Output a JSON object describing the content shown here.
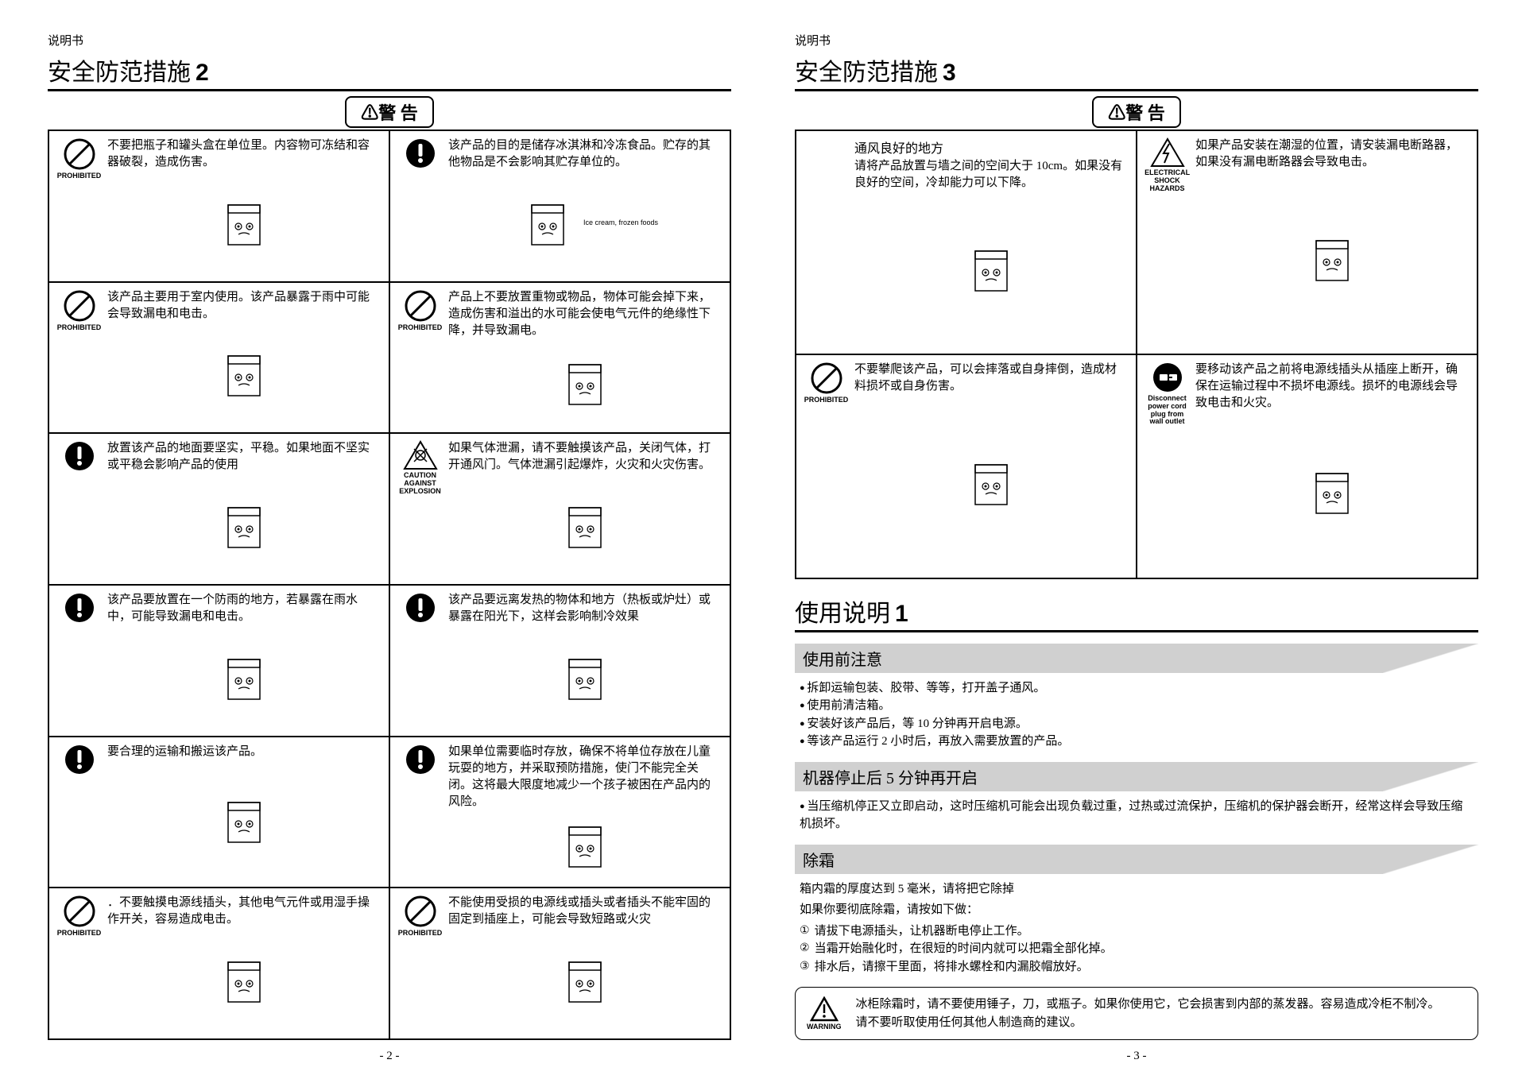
{
  "doc_label": "说明书",
  "left": {
    "title": "安全防范措施",
    "title_num": "2",
    "banner": "⚠警 告",
    "cells": [
      {
        "icon": "prohibited",
        "icon_label": "PROHIBITED",
        "text": "不要把瓶子和罐头盒在单位里。内容物可冻结和容器破裂，造成伤害。"
      },
      {
        "icon": "excl",
        "text": "该产品的目的是储存冰淇淋和冷冻食品。贮存的其他物品是不会影响其贮存单位的。",
        "caption": "Ice cream, frozen foods"
      },
      {
        "icon": "prohibited",
        "icon_label": "PROHIBITED",
        "text": "该产品主要用于室内使用。该产品暴露于雨中可能会导致漏电和电击。"
      },
      {
        "icon": "prohibited",
        "icon_label": "PROHIBITED",
        "text": "产品上不要放置重物或物品，物体可能会掉下来，造成伤害和溢出的水可能会使电气元件的绝缘性下降，并导致漏电。"
      },
      {
        "icon": "excl",
        "text": "放置该产品的地面要坚实，平稳。如果地面不坚实或平稳会影响产品的使用"
      },
      {
        "icon": "caution",
        "icon_label": "CAUTION AGAINST EXPLOSION",
        "text": "如果气体泄漏，请不要触摸该产品，关闭气体，打开通风门。气体泄漏引起爆炸，火灾和火灾伤害。"
      },
      {
        "icon": "excl",
        "text": "该产品要放置在一个防雨的地方，若暴露在雨水中，可能导致漏电和电击。"
      },
      {
        "icon": "excl",
        "text": "该产品要远离发热的物体和地方（热板或炉灶）或暴露在阳光下，这样会影响制冷效果"
      },
      {
        "icon": "excl",
        "text": "要合理的运输和搬运该产品。"
      },
      {
        "icon": "excl",
        "text": "如果单位需要临时存放，确保不将单位存放在儿童玩耍的地方，并采取预防措施，使门不能完全关闭。这将最大限度地减少一个孩子被困在产品内的风险。"
      },
      {
        "icon": "prohibited",
        "icon_label": "PROHIBITED",
        "text": "．不要触摸电源线插头，其他电气元件或用湿手操作开关，容易造成电击。"
      },
      {
        "icon": "prohibited",
        "icon_label": "PROHIBITED",
        "text": "不能使用受损的电源线或插头或者插头不能牢固的固定到插座上，可能会导致短路或火灾"
      }
    ],
    "page_num": "- 2 -"
  },
  "right": {
    "title": "安全防范措施",
    "title_num": "3",
    "banner": "⚠警 告",
    "cells": [
      {
        "subtitle": "通风良好的地方",
        "text": "请将产品放置与墙之间的空间大于 10cm。如果没有良好的空间，冷却能力可以下降。"
      },
      {
        "icon": "shock",
        "icon_label": "ELECTRICAL SHOCK HAZARDS",
        "text": "如果产品安装在潮湿的位置，请安装漏电断路器，如果没有漏电断路器会导致电击。"
      },
      {
        "icon": "prohibited",
        "icon_label": "PROHIBITED",
        "text": "不要攀爬该产品，可以会摔落或自身摔倒，造成材料损坏或自身伤害。"
      },
      {
        "icon": "disconnect",
        "icon_label": "Disconnect power cord plug from wall outlet",
        "text": "要移动该产品之前将电源线插头从插座上断开，确保在运输过程中不损坏电源线。损坏的电源线会导致电击和火灾。"
      }
    ],
    "usage_title": "使用说明",
    "usage_num": "1",
    "sec1_hdr": "使用前注意",
    "sec1_bullets": [
      "拆卸运输包装、胶带、等等，打开盖子通风。",
      "使用前清洁箱。",
      "安装好该产品后，等 10 分钟再开启电源。",
      "等该产品运行 2 小时后，再放入需要放置的产品。"
    ],
    "sec2_hdr": "机器停止后 5 分钟再开启",
    "sec2_bullets": [
      "当压缩机停正又立即启动，这时压缩机可能会出现负载过重，过热或过流保护，压缩机的保护器会断开，经常这样会导致压缩机损坏。"
    ],
    "sec3_hdr": "除霜",
    "sec3_line1": "箱内霜的厚度达到 5 毫米，请将把它除掉",
    "sec3_line2": "如果你要彻底除霜，请按如下做：",
    "sec3_items": [
      "请拔下电源插头，让机器断电停止工作。",
      "当霜开始融化时，在很短的时间内就可以把霜全部化掉。",
      "排水后，请擦干里面，将排水螺栓和内漏胶帽放好。"
    ],
    "warnbox_label": "WARNING",
    "warnbox_text": "冰柜除霜时，请不要使用锤子，刀，或瓶子。如果你使用它，它会损害到内部的蒸发器。容易造成冷柜不制冷。\n请不要听取使用任何其他人制造商的建议。",
    "page_num": "- 3 -"
  }
}
